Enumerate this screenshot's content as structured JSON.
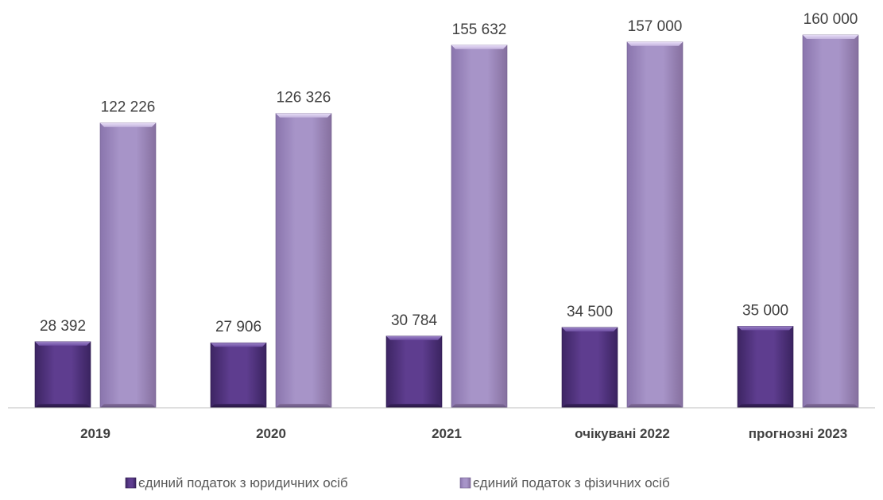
{
  "chart_data": {
    "type": "bar",
    "categories": [
      "2019",
      "2020",
      "2021",
      "очікувані 2022",
      "прогнозні 2023"
    ],
    "series": [
      {
        "name": "єдиний податок з юридичних осіб",
        "values": [
          28392,
          27906,
          30784,
          34500,
          35000
        ],
        "labels": [
          "28 392",
          "27 906",
          "30 784",
          "34 500",
          "35 000"
        ]
      },
      {
        "name": "єдиний податок з фізичних осіб",
        "values": [
          122226,
          126326,
          155632,
          157000,
          160000
        ],
        "labels": [
          "122 226",
          "126 326",
          "155 632",
          "157 000",
          "160 000"
        ]
      }
    ],
    "ylim": [
      0,
      160000
    ],
    "grid": false,
    "legend_position": "bottom",
    "colors": {
      "series_0": "#5b3a8c",
      "series_1": "#a48fc6",
      "axis": "#bfbfbf"
    }
  }
}
